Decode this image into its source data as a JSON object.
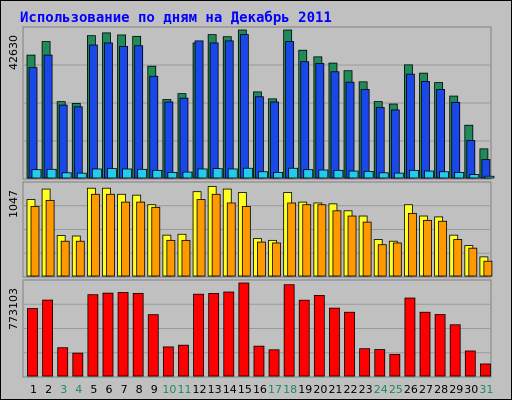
{
  "chart_data": {
    "type": "bar",
    "title": "Использование по дням на Декабрь 2011",
    "categories": [
      "1",
      "2",
      "3",
      "4",
      "5",
      "6",
      "7",
      "8",
      "9",
      "10",
      "11",
      "12",
      "13",
      "14",
      "15",
      "16",
      "17",
      "18",
      "19",
      "20",
      "21",
      "22",
      "23",
      "24",
      "25",
      "26",
      "27",
      "28",
      "29",
      "30",
      "31"
    ],
    "weekend_days": [
      "3",
      "4",
      "10",
      "11",
      "17",
      "18",
      "24",
      "25",
      "31"
    ],
    "grid": true,
    "panels": [
      {
        "axis_label": "42630",
        "ylim": [
          0,
          42630
        ],
        "series": [
          {
            "color": "#1f8a5a",
            "values": [
              35400,
              39300,
              22000,
              21500,
              41000,
              41800,
              41200,
              40800,
              32200,
              22600,
              24300,
              38900,
              41300,
              40700,
              43200,
              24800,
              22800,
              43200,
              36800,
              34900,
              33100,
              30900,
              27700,
              22000,
              21300,
              32600,
              30200,
              27500,
              23600,
              15200,
              8400
            ]
          },
          {
            "color": "#1a47e8",
            "values": [
              31800,
              35400,
              21000,
              20500,
              38300,
              38900,
              37900,
              38100,
              29300,
              21900,
              23000,
              39500,
              38900,
              39500,
              41300,
              23400,
              21900,
              39300,
              33500,
              33000,
              30600,
              27600,
              25500,
              20300,
              19600,
              29900,
              27800,
              25500,
              21800,
              10800,
              5300
            ]
          },
          {
            "color": "#22ccee",
            "values": [
              2400,
              2500,
              1500,
              1400,
              2600,
              2700,
              2600,
              2500,
              2200,
              1600,
              1700,
              2600,
              2700,
              2600,
              2800,
              1800,
              1600,
              2800,
              2400,
              2300,
              2200,
              2000,
              1900,
              1500,
              1400,
              2200,
              2000,
              1800,
              1600,
              1000,
              500
            ]
          }
        ]
      },
      {
        "axis_label": "1047",
        "ylim": [
          0,
          1047
        ],
        "series": [
          {
            "color": "#ffff22",
            "values": [
              880,
              1000,
              465,
              460,
              1010,
              1010,
              940,
              930,
              820,
              470,
              480,
              970,
              1030,
              1000,
              960,
              430,
              410,
              960,
              850,
              840,
              830,
              750,
              690,
              420,
              400,
              820,
              690,
              680,
              470,
              350,
              220
            ]
          },
          {
            "color": "#ff9900",
            "values": [
              800,
              870,
              400,
              400,
              940,
              940,
              850,
              850,
              790,
              410,
              410,
              880,
              940,
              840,
              800,
              390,
              380,
              840,
              820,
              820,
              750,
              690,
              620,
              360,
              380,
              720,
              640,
              630,
              420,
              320,
              170
            ]
          }
        ]
      },
      {
        "axis_label": "773103",
        "ylim": [
          0,
          773103
        ],
        "series": [
          {
            "color": "#ff0000",
            "values": [
              561000,
              631000,
              235000,
              190000,
              676000,
              689000,
              694000,
              687000,
              510000,
              242000,
              256000,
              680000,
              686000,
              698000,
              774000,
              248000,
              218000,
              759000,
              630000,
              670000,
              564000,
              530000,
              227000,
              220000,
              180000,
              648000,
              530000,
              511000,
              426000,
              208000,
              100000
            ]
          }
        ]
      }
    ]
  }
}
